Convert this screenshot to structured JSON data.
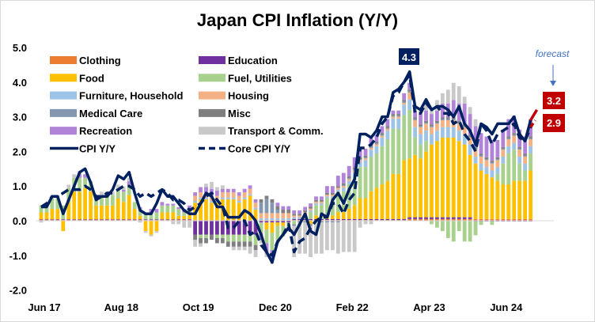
{
  "chart_data": {
    "type": "bar",
    "stacked": true,
    "title": "Japan CPI Inflation (Y/Y)",
    "xlabel": "",
    "ylabel": "",
    "ylim": [
      -2.0,
      5.0
    ],
    "yticks": [
      "5.0",
      "4.0",
      "3.0",
      "2.0",
      "1.0",
      "0.0",
      "-1.0",
      "-2.0"
    ],
    "x_start": "Jun 17",
    "x_end": "Nov 24",
    "xtick_labels": [
      {
        "label": "Jun 17",
        "index": 0
      },
      {
        "label": "Aug 18",
        "index": 14
      },
      {
        "label": "Oct 19",
        "index": 28
      },
      {
        "label": "Dec 20",
        "index": 42
      },
      {
        "label": "Feb 22",
        "index": 56
      },
      {
        "label": "Apr 23",
        "index": 70
      },
      {
        "label": "Jun 24",
        "index": 84
      }
    ],
    "grid": false,
    "legend_position": "top-left",
    "series": [
      {
        "name": "Clothing",
        "color": "#ED7D31",
        "values": [
          0.02,
          0.02,
          0.02,
          0.02,
          0.02,
          0.02,
          0.02,
          0.02,
          0.02,
          0.02,
          0.02,
          0.02,
          0.02,
          0.02,
          0.02,
          0.02,
          0.02,
          0.02,
          0.02,
          0.02,
          0.02,
          0.02,
          0.02,
          0.02,
          0.02,
          0.02,
          0.02,
          0.02,
          0.02,
          0.02,
          0.02,
          0.02,
          0.02,
          0.02,
          0.02,
          0.02,
          0.02,
          0.02,
          0.02,
          0.02,
          0.02,
          0.02,
          0.02,
          0.02,
          0.02,
          0.02,
          0.02,
          0.02,
          0.02,
          0.02,
          0.02,
          0.02,
          0.02,
          0.02,
          0.02,
          0.02,
          0.02,
          0.02,
          0.02,
          0.02,
          0.02,
          0.02,
          0.02,
          0.02,
          0.02,
          0.02,
          0.02,
          0.05,
          0.05,
          0.05,
          0.05,
          0.05,
          0.05,
          0.05,
          0.05,
          0.05,
          0.05,
          0.05,
          0.05,
          0.05,
          0.05,
          0.05,
          0.05,
          0.05,
          0.05,
          0.05,
          0.05,
          0.05,
          0.05,
          0.05
        ]
      },
      {
        "name": "Education",
        "color": "#7030A0",
        "values": [
          0.02,
          0.02,
          0.02,
          0.02,
          0.02,
          0.02,
          0.02,
          0.02,
          0.02,
          0.02,
          0.02,
          0.02,
          0.02,
          0.02,
          0.02,
          0.02,
          0.02,
          0.02,
          0.02,
          0.02,
          0.02,
          0.02,
          0.02,
          0.02,
          0.02,
          0.02,
          0.02,
          0.02,
          -0.4,
          -0.4,
          -0.4,
          -0.4,
          -0.4,
          -0.4,
          -0.4,
          -0.4,
          -0.4,
          -0.4,
          -0.4,
          -0.4,
          -0.05,
          -0.05,
          -0.05,
          -0.05,
          -0.05,
          -0.05,
          0.03,
          0.03,
          0.03,
          0.03,
          0.03,
          0.03,
          0.03,
          0.03,
          0.03,
          0.03,
          0.03,
          0.03,
          0.03,
          0.03,
          0.03,
          0.03,
          0.03,
          0.03,
          0.03,
          0.03,
          0.03,
          0.05,
          0.05,
          0.05,
          0.05,
          0.05,
          0.05,
          0.05,
          0.05,
          0.05,
          0.05,
          0.05,
          0.05,
          -0.02,
          -0.02,
          -0.02,
          -0.02,
          -0.02,
          -0.02,
          -0.02,
          -0.02,
          -0.02,
          -0.02,
          -0.02
        ]
      },
      {
        "name": "Food",
        "color": "#FFC000",
        "values": [
          0.2,
          0.2,
          0.3,
          0.3,
          -0.3,
          0.5,
          0.8,
          0.8,
          0.9,
          0.8,
          0.4,
          0.4,
          0.4,
          0.4,
          0.6,
          0.5,
          0.7,
          0.3,
          0.1,
          -0.3,
          -0.4,
          -0.3,
          0.2,
          0.2,
          0.2,
          0.1,
          0.1,
          0.2,
          0.5,
          0.6,
          0.6,
          0.5,
          0.5,
          0.6,
          0.6,
          0.6,
          0.5,
          0.6,
          0.7,
          0.3,
          0.0,
          -0.2,
          -0.3,
          -0.1,
          -0.1,
          0.0,
          0.0,
          0.0,
          0.0,
          -0.1,
          0.1,
          0.0,
          0.1,
          0.1,
          0.2,
          0.2,
          0.3,
          0.4,
          0.6,
          0.6,
          0.8,
          0.9,
          1.0,
          1.1,
          1.3,
          1.3,
          1.7,
          1.7,
          1.8,
          1.7,
          1.9,
          2.1,
          2.2,
          2.3,
          2.3,
          2.3,
          2.2,
          2.1,
          1.8,
          1.6,
          1.4,
          1.3,
          1.2,
          1.1,
          1.0,
          1.0,
          1.1,
          1.1,
          1.1,
          1.4
        ]
      },
      {
        "name": "Fuel, Utilities",
        "color": "#A9D18E",
        "values": [
          0.2,
          0.2,
          0.3,
          0.3,
          0.4,
          0.4,
          0.4,
          0.4,
          0.3,
          0.3,
          0.3,
          0.3,
          0.3,
          0.3,
          0.3,
          0.3,
          0.3,
          0.2,
          0.2,
          0.2,
          0.2,
          0.2,
          0.2,
          0.2,
          0.2,
          0.2,
          0.1,
          0.1,
          0.0,
          -0.1,
          -0.1,
          0.0,
          -0.1,
          -0.1,
          -0.2,
          -0.2,
          -0.2,
          -0.2,
          -0.2,
          -0.3,
          -0.3,
          -0.4,
          -0.5,
          -0.4,
          -0.3,
          -0.2,
          -0.1,
          0.0,
          0.1,
          0.2,
          0.3,
          0.4,
          0.5,
          0.5,
          0.6,
          0.6,
          0.7,
          0.8,
          0.9,
          0.9,
          1.0,
          1.0,
          1.1,
          1.2,
          1.3,
          1.3,
          1.3,
          1.4,
          0.5,
          0.4,
          0.3,
          -0.1,
          -0.2,
          -0.3,
          -0.5,
          -0.6,
          -0.3,
          -0.6,
          -0.6,
          -0.4,
          -0.1,
          0.0,
          -0.1,
          0.2,
          0.6,
          0.9,
          0.9,
          0.5,
          0.3,
          0.5
        ]
      },
      {
        "name": "Furniture, Household",
        "color": "#9DC3E6",
        "values": [
          0,
          0,
          0,
          0,
          0,
          0,
          0,
          0,
          0,
          0,
          0,
          0,
          0,
          0,
          0,
          0,
          0,
          0,
          0,
          0,
          0,
          0,
          0,
          0,
          0,
          0,
          0,
          0,
          0.05,
          0.05,
          0.05,
          0.05,
          0.05,
          0.05,
          0.05,
          0.05,
          0.05,
          0.05,
          0.05,
          0.05,
          0.05,
          0.05,
          0.05,
          0.05,
          0.05,
          0.05,
          0.05,
          0.05,
          0.05,
          0.05,
          0.05,
          0.05,
          0.05,
          0.05,
          0.05,
          0.1,
          0.1,
          0.15,
          0.15,
          0.2,
          0.2,
          0.2,
          0.25,
          0.25,
          0.3,
          0.3,
          0.3,
          0.3,
          0.3,
          0.3,
          0.3,
          0.3,
          0.3,
          0.3,
          0.3,
          0.3,
          0.3,
          0.3,
          0.3,
          0.2,
          0.2,
          0.2,
          0.2,
          0.2,
          0.2,
          0.2,
          0.2,
          0.2,
          0.2,
          0.2
        ]
      },
      {
        "name": "Housing",
        "color": "#F4B183",
        "values": [
          0,
          0,
          0,
          0,
          0,
          0,
          0,
          0,
          0,
          0,
          0,
          0,
          0,
          0,
          0,
          0,
          0,
          0,
          0,
          0,
          0,
          0,
          0,
          0,
          0,
          0,
          0,
          0,
          0.15,
          0.15,
          0.15,
          0.15,
          0.15,
          0.15,
          0.15,
          0.15,
          0.15,
          0.15,
          0.15,
          0.15,
          0.15,
          0.15,
          0.15,
          0.15,
          0.15,
          0.15,
          0.05,
          0.05,
          0.05,
          0.05,
          0.05,
          0.05,
          0.05,
          0.05,
          0.05,
          0.05,
          0.05,
          0.05,
          0.05,
          0.05,
          0.05,
          0.05,
          0.05,
          0.05,
          0.05,
          0.05,
          0.05,
          0.2,
          0.2,
          0.2,
          0.2,
          0.2,
          0.2,
          0.2,
          0.2,
          0.2,
          0.2,
          0.2,
          0.2,
          0.2,
          0.2,
          0.2,
          0.2,
          0.2,
          0.2,
          0.2,
          0.2,
          0.2,
          0.2,
          0.2
        ]
      },
      {
        "name": "Medical Care",
        "color": "#8497B0",
        "values": [
          0,
          0,
          0,
          0,
          0,
          0,
          0,
          0,
          0,
          0,
          0,
          0,
          0,
          0,
          0,
          0,
          0,
          0,
          0,
          0,
          0,
          0,
          0,
          0,
          0,
          0,
          0,
          0,
          0,
          0,
          0,
          0,
          0,
          0,
          0,
          0,
          0,
          0,
          0,
          0,
          0.3,
          0.4,
          0.3,
          0.1,
          0,
          0,
          -0.05,
          -0.05,
          -0.05,
          -0.05,
          -0.05,
          -0.05,
          -0.05,
          -0.05,
          -0.05,
          0.03,
          0.03,
          0.03,
          0.03,
          0.03,
          0.03,
          0.03,
          0.03,
          0.03,
          0.03,
          0.03,
          0.03,
          0.03,
          0.03,
          0.03,
          0.03,
          0.03,
          0.03,
          0.03,
          0.03,
          0.03,
          0.03,
          0.03,
          0.03,
          0.03,
          0.03,
          0.03,
          0.03,
          0.03,
          0.03,
          0.03,
          0.03,
          0.03,
          0.03,
          0.03
        ]
      },
      {
        "name": "Misc",
        "color": "#7F7F7F",
        "values": [
          0,
          0,
          0,
          0,
          0,
          0,
          0,
          0,
          0,
          0,
          0,
          0,
          0,
          0,
          0,
          0,
          0,
          0,
          0,
          0,
          0,
          0,
          0,
          0,
          0,
          0,
          0,
          0,
          -0.15,
          -0.15,
          -0.15,
          -0.15,
          -0.15,
          -0.15,
          -0.15,
          -0.15,
          -0.15,
          -0.15,
          -0.15,
          -0.15,
          0.1,
          0.1,
          0.1,
          0.1,
          0.1,
          0.1,
          0.05,
          0.05,
          0.05,
          0.05,
          0.05,
          0.05,
          0.05,
          0.05,
          0.05,
          0.05,
          0.05,
          0.05,
          0.05,
          0.05,
          0.05,
          0.05,
          0.05,
          0.05,
          0.05,
          0.05,
          0.05,
          0.05,
          0.05,
          0.05,
          0.05,
          0.05,
          0.05,
          0.05,
          0.05,
          0.05,
          0.05,
          0.05,
          0.05,
          0.05,
          0.05,
          0.05,
          0.05,
          0.05,
          0.05,
          0.05,
          0.05,
          0.05,
          0.05,
          0.05
        ]
      },
      {
        "name": "Recreation",
        "color": "#B083D9",
        "values": [
          0,
          0,
          0,
          0,
          0,
          0,
          0,
          0.1,
          0.1,
          0,
          0,
          0,
          0,
          0,
          0,
          0.05,
          0.1,
          0,
          0.05,
          0,
          0.1,
          0.1,
          0.1,
          0.05,
          0.05,
          0.05,
          0.1,
          0.1,
          0.1,
          0.15,
          0.15,
          0.2,
          0.15,
          0.1,
          0.1,
          0.1,
          0.1,
          0.1,
          0.1,
          0.1,
          -0.2,
          -0.3,
          -0.3,
          0.1,
          0.1,
          0.1,
          0.1,
          0.1,
          0.1,
          0.1,
          0.1,
          0.1,
          0.2,
          0.2,
          0.3,
          0.3,
          0.3,
          0.3,
          0.3,
          0.2,
          0.2,
          0.2,
          0.2,
          0.2,
          0.1,
          0.1,
          0.2,
          0.2,
          0.2,
          0.3,
          0.3,
          0.3,
          0.3,
          0.4,
          0.4,
          0.5,
          0.5,
          0.6,
          0.6,
          0.6,
          0.6,
          0.6,
          0.6,
          0.5,
          0.5,
          0.5,
          0.5,
          0.5,
          0.5,
          0.5
        ]
      },
      {
        "name": "Transport & Comm.",
        "color": "#C9C9C9",
        "values": [
          -0.05,
          0.05,
          0.1,
          0.1,
          0,
          0.1,
          0.1,
          0.1,
          0,
          0,
          0,
          0.1,
          0.1,
          0.1,
          0.1,
          0.1,
          0.1,
          0,
          -0.05,
          -0.05,
          -0.05,
          -0.05,
          0,
          0,
          -0.1,
          -0.1,
          -0.2,
          -0.2,
          -0.2,
          -0.1,
          0.1,
          0.2,
          0.1,
          0.1,
          0,
          -0.1,
          -0.1,
          -0.1,
          -0.2,
          -0.2,
          -0.1,
          -0.1,
          -0.1,
          -0.1,
          0,
          0,
          -0.9,
          -0.9,
          -0.9,
          -0.9,
          -0.9,
          -0.9,
          -0.8,
          -0.8,
          -0.9,
          -0.9,
          -0.9,
          -0.9,
          -0.2,
          -0.1,
          -0.1,
          0,
          0,
          0,
          0,
          0,
          0,
          0,
          0.1,
          0.1,
          0.2,
          0.2,
          0.3,
          0.3,
          0.4,
          0.5,
          0.5,
          0.2,
          0.2,
          0.2,
          0,
          0,
          0,
          0,
          0,
          0,
          0,
          0,
          0,
          0
        ]
      }
    ],
    "lines": [
      {
        "name": "CPI Y/Y",
        "color": "#002060",
        "style": "solid",
        "values": [
          0.4,
          0.4,
          0.7,
          0.7,
          0.2,
          0.6,
          1.0,
          1.4,
          1.5,
          1.1,
          0.6,
          0.7,
          0.7,
          0.9,
          1.3,
          1.2,
          1.4,
          0.8,
          0.3,
          0.2,
          0.2,
          0.5,
          0.9,
          0.7,
          0.7,
          0.5,
          0.3,
          0.2,
          0.2,
          0.5,
          0.8,
          0.7,
          0.4,
          0.4,
          0.1,
          0.1,
          0.1,
          0.3,
          0.2,
          0.0,
          -0.4,
          -0.9,
          -1.2,
          -0.6,
          -0.4,
          -0.2,
          -0.4,
          -0.1,
          0.2,
          -0.3,
          -0.4,
          0.2,
          0.1,
          0.6,
          0.8,
          0.5,
          0.9,
          1.2,
          2.5,
          2.5,
          2.4,
          2.6,
          3.0,
          3.0,
          3.7,
          3.8,
          4.0,
          4.3,
          3.3,
          3.2,
          3.5,
          3.2,
          3.3,
          3.3,
          3.2,
          3.0,
          3.3,
          2.8,
          2.6,
          2.2,
          2.8,
          2.7,
          2.5,
          2.8,
          2.8,
          2.8,
          3.0,
          2.5,
          2.3,
          2.9
        ]
      },
      {
        "name": "Core CPI Y/Y",
        "color": "#002060",
        "style": "dashed",
        "values": [
          0.4,
          0.5,
          0.7,
          0.7,
          0.8,
          0.9,
          0.9,
          0.9,
          1.0,
          0.9,
          0.7,
          0.7,
          0.8,
          0.8,
          0.9,
          1.0,
          1.0,
          0.9,
          0.7,
          0.8,
          0.7,
          0.8,
          0.9,
          0.8,
          0.6,
          0.6,
          0.5,
          0.3,
          0.4,
          0.5,
          0.7,
          0.8,
          0.6,
          0.4,
          -0.2,
          -0.2,
          0.0,
          0.0,
          -0.4,
          -0.3,
          -0.7,
          -0.9,
          -1.0,
          -0.6,
          -0.4,
          -0.1,
          -0.9,
          -0.6,
          -0.5,
          -0.2,
          0.0,
          0.1,
          0.1,
          0.5,
          0.5,
          0.2,
          0.6,
          0.8,
          2.1,
          2.1,
          2.2,
          2.4,
          2.8,
          3.0,
          3.6,
          3.7,
          4.0,
          4.2,
          3.1,
          3.1,
          3.4,
          3.2,
          3.3,
          3.1,
          3.1,
          2.8,
          2.9,
          2.5,
          2.3,
          2.0,
          2.8,
          2.6,
          2.2,
          2.5,
          2.6,
          2.7,
          2.8,
          2.4,
          2.3,
          2.7
        ]
      }
    ],
    "forecast": {
      "label": "forecast",
      "color": "#C00000",
      "cpi": 3.2,
      "core": 2.9
    },
    "annotations": {
      "peak": "4.3",
      "forecast_cpi": "3.2",
      "forecast_core": "2.9"
    }
  }
}
